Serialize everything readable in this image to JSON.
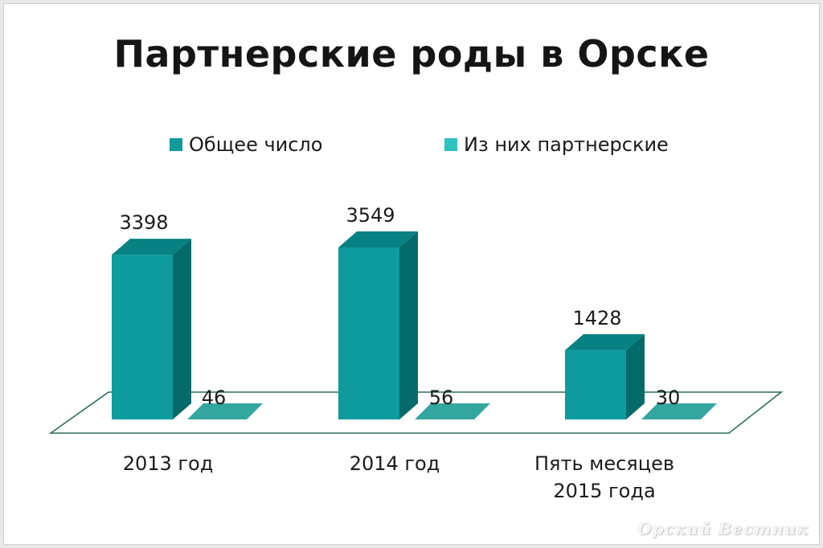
{
  "chart_data": {
    "type": "bar",
    "title": "Партнерские роды в Орске",
    "categories": [
      [
        "2013 год"
      ],
      [
        "2014 год"
      ],
      [
        "Пять месяцев",
        "2015 года"
      ]
    ],
    "series": [
      {
        "name": "Общее число",
        "values": [
          3398,
          3549,
          1428
        ]
      },
      {
        "name": "Из них партнерские",
        "values": [
          46,
          56,
          30
        ]
      }
    ],
    "value_labels": [
      [
        "3398",
        "3549",
        "1428"
      ],
      [
        "46",
        "56",
        "30"
      ]
    ],
    "xlabel": "",
    "ylabel": "",
    "ylim": [
      0,
      3549
    ],
    "grid": false,
    "legend_position": "top",
    "colors": {
      "front": "#0d9b9e",
      "side": "#056a6a",
      "top": "#078181",
      "small_fill": "#33a6a0",
      "legend_series1": "#0f9a9c",
      "legend_series2": "#2fc3c0",
      "floor_stroke": "#2c6e5c"
    }
  },
  "watermark": "Орский Вестник"
}
